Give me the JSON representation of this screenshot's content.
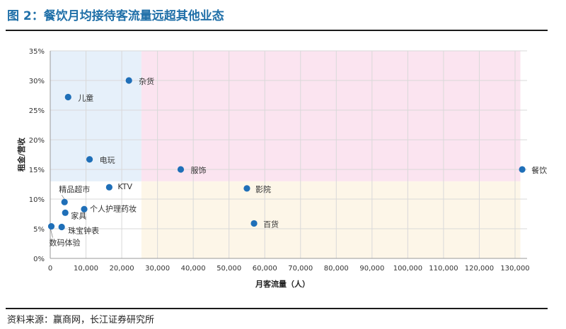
{
  "figure_title": "图 2：餐饮月均接待客流量远超其他业态",
  "source_note": "资料来源：赢商网，长江证券研究所",
  "chart_data": {
    "type": "scatter",
    "title": "",
    "xlabel": "月客流量（人）",
    "ylabel": "租金/营收",
    "xlim": [
      0,
      130000
    ],
    "ylim": [
      0,
      0.35
    ],
    "x_ticks": [
      0,
      10000,
      20000,
      30000,
      40000,
      50000,
      60000,
      70000,
      80000,
      90000,
      100000,
      110000,
      120000,
      130000
    ],
    "y_ticks": [
      0,
      0.05,
      0.1,
      0.15,
      0.2,
      0.25,
      0.3,
      0.35
    ],
    "x_tick_labels": [
      "0",
      "10,000",
      "20,000",
      "30,000",
      "40,000",
      "50,000",
      "60,000",
      "70,000",
      "80,000",
      "90,000",
      "100,000",
      "110,000",
      "120,000",
      "130,000"
    ],
    "y_tick_labels": [
      "0%",
      "5%",
      "10%",
      "15%",
      "20%",
      "25%",
      "30%",
      "35%"
    ],
    "grid": true,
    "legend": "none",
    "point_color": "#1f6fb8",
    "regions": [
      {
        "x": [
          0,
          25500
        ],
        "y": [
          0.13,
          0.35
        ],
        "color": "#e6f0fa"
      },
      {
        "x": [
          25500,
          131500
        ],
        "y": [
          0.13,
          0.35
        ],
        "color": "#fbe4f0"
      },
      {
        "x": [
          25500,
          131500
        ],
        "y": [
          0,
          0.13
        ],
        "color": "#fdf6e8"
      }
    ],
    "points": [
      {
        "label": "杂货",
        "x": 22000,
        "y": 0.3
      },
      {
        "label": "儿童",
        "x": 5000,
        "y": 0.272
      },
      {
        "label": "电玩",
        "x": 11000,
        "y": 0.167
      },
      {
        "label": "服饰",
        "x": 36500,
        "y": 0.15
      },
      {
        "label": "餐饮",
        "x": 132000,
        "y": 0.15
      },
      {
        "label": "KTV",
        "x": 16500,
        "y": 0.12
      },
      {
        "label": "影院",
        "x": 55000,
        "y": 0.118
      },
      {
        "label": "精品超市",
        "x": 4000,
        "y": 0.095
      },
      {
        "label": "个人护理药妆",
        "x": 9500,
        "y": 0.083
      },
      {
        "label": "家具",
        "x": 4200,
        "y": 0.077
      },
      {
        "label": "百货",
        "x": 57000,
        "y": 0.059
      },
      {
        "label": "珠宝钟表",
        "x": 3200,
        "y": 0.053
      },
      {
        "label": "数码体验",
        "x": 300,
        "y": 0.054
      }
    ]
  }
}
